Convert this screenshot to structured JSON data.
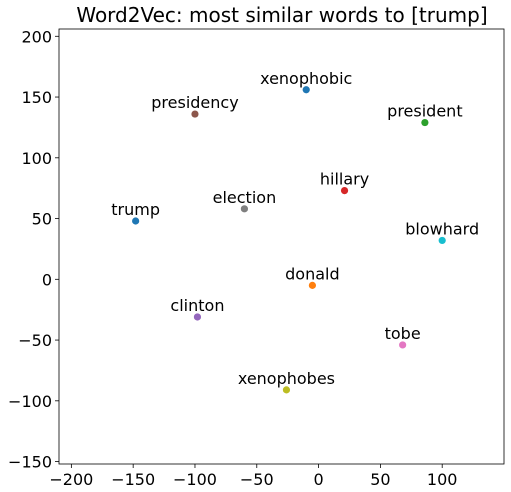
{
  "chart_data": {
    "type": "scatter",
    "title": "Word2Vec: most similar words to [trump]",
    "xlabel": "",
    "ylabel": "",
    "xlim": [
      -210,
      150
    ],
    "ylim": [
      -152,
      206
    ],
    "xticks": [
      -200,
      -150,
      -100,
      -50,
      0,
      50,
      100
    ],
    "xtick_labels": [
      "−200",
      "−150",
      "−100",
      "−50",
      "0",
      "50",
      "100"
    ],
    "yticks": [
      -150,
      -100,
      -50,
      0,
      50,
      100,
      150,
      200
    ],
    "ytick_labels": [
      "−150",
      "−100",
      "−50",
      "0",
      "50",
      "100",
      "150",
      "200"
    ],
    "grid": false,
    "legend": false,
    "points": [
      {
        "label": "xenophobic",
        "x": -10,
        "y": 156,
        "color": "#1f77b4"
      },
      {
        "label": "presidency",
        "x": -100,
        "y": 136,
        "color": "#8c564b"
      },
      {
        "label": "president",
        "x": 86,
        "y": 129,
        "color": "#2ca02c"
      },
      {
        "label": "hillary",
        "x": 21,
        "y": 73,
        "color": "#d62728"
      },
      {
        "label": "election",
        "x": -60,
        "y": 58,
        "color": "#7f7f7f"
      },
      {
        "label": "trump",
        "x": -148,
        "y": 48,
        "color": "#1f77b4"
      },
      {
        "label": "blowhard",
        "x": 100,
        "y": 32,
        "color": "#17becf"
      },
      {
        "label": "donald",
        "x": -5,
        "y": -5,
        "color": "#ff7f0e"
      },
      {
        "label": "clinton",
        "x": -98,
        "y": -31,
        "color": "#9467bd"
      },
      {
        "label": "tobe",
        "x": 68,
        "y": -54,
        "color": "#e377c2"
      },
      {
        "label": "xenophobes",
        "x": -26,
        "y": -91,
        "color": "#bcbd22"
      }
    ]
  }
}
